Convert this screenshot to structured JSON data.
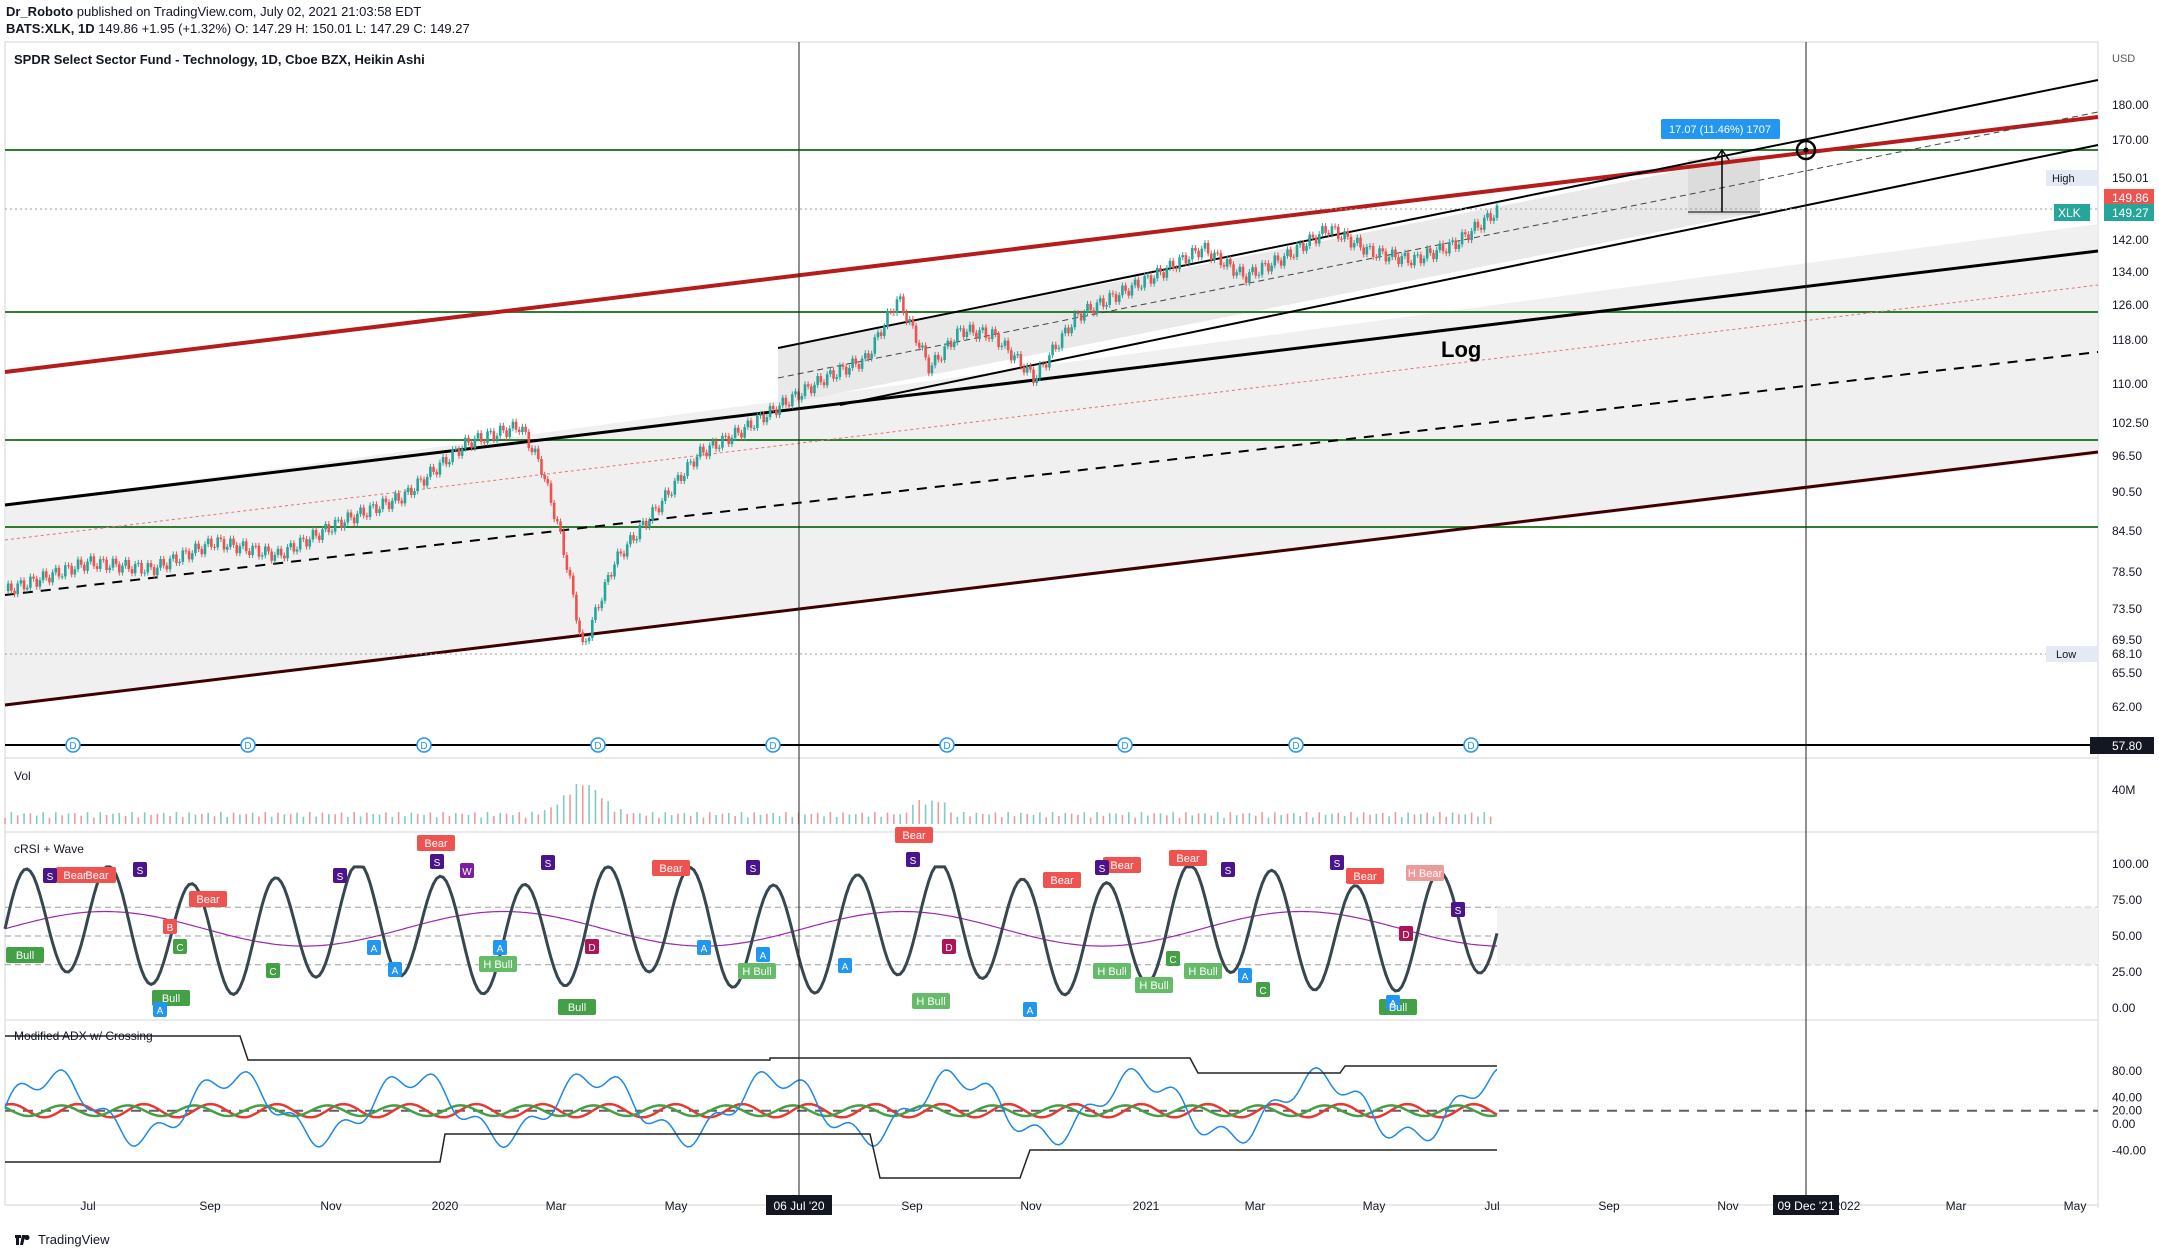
{
  "header": {
    "author": "Dr_Roboto",
    "published": "published on TradingView.com, July 02, 2021 21:03:58 EDT",
    "ticker_line_symbol": "BATS:XLK, 1D",
    "ticker_line_values": "149.86  +1.95 (+1.32%)  O: 147.29  H: 150.01  L: 147.29  C: 149.27"
  },
  "main_title": "SPDR Select Sector Fund - Technology, 1D, Cboe BZX, Heikin Ashi",
  "log_label": "Log",
  "currency": "USD",
  "measure_label": "17.07 (11.46%) 1707",
  "price_axis_ticks": [
    "180.00",
    "170.00",
    "150.01",
    "142.00",
    "134.00",
    "126.00",
    "118.00",
    "110.00",
    "102.50",
    "96.50",
    "90.50",
    "84.50",
    "78.50",
    "73.50",
    "69.50",
    "65.50",
    "62.00",
    "57.80"
  ],
  "price_tags": {
    "high_label": "High",
    "high_value": "150.01",
    "last_value": "149.86",
    "symbol": "XLK",
    "close_value": "149.27",
    "low_label": "Low",
    "low_value": "68.10",
    "cursor_value": "57.80"
  },
  "panes": {
    "volume": {
      "label": "Vol",
      "tick": "40M"
    },
    "crsi": {
      "label": "cRSI + Wave",
      "ticks": [
        "100.00",
        "75.00",
        "50.00",
        "25.00",
        "0.00"
      ]
    },
    "adx": {
      "label": "Modified ADX w/ Crossing",
      "ticks": [
        "80.00",
        "40.00",
        "20.00",
        "0.00",
        "-40.00"
      ]
    }
  },
  "time_axis": [
    "Jul",
    "Sep",
    "Nov",
    "2020",
    "Mar",
    "May",
    "06 Jul '20",
    "Sep",
    "Nov",
    "2021",
    "Mar",
    "May",
    "Jul",
    "Sep",
    "Nov",
    "09 Dec '21",
    "2022",
    "Mar",
    "May"
  ],
  "dividend_marker": "D",
  "signal_labels": {
    "bear": "Bear",
    "bull": "Bull",
    "hbull": "H Bull",
    "hbear": "H Bear",
    "s": "S",
    "w": "W",
    "b": "B",
    "a": "A",
    "c": "C",
    "d": "D"
  },
  "footer": {
    "brand": "TradingView"
  },
  "colors": {
    "up": "#26a69a",
    "down": "#ef5350",
    "channel_red": "#b71c1c",
    "green_line": "#2e7d32",
    "black": "#000000",
    "grid": "#e0e3eb",
    "blue": "#2196f3",
    "purple": "#9c27b0"
  },
  "chart_data": {
    "type": "candlestick",
    "symbol": "BATS:XLK",
    "interval": "1D",
    "chart_style": "Heikin Ashi",
    "scale": "log",
    "last": {
      "open": 147.29,
      "high": 150.01,
      "low": 147.29,
      "close": 149.27,
      "change": 1.95,
      "change_pct": 1.32
    },
    "high_marker": 150.01,
    "low_marker": 68.1,
    "horizontal_levels": [
      165.5,
      126.0,
      99.0,
      85.5
    ],
    "price_path": [
      [
        0,
        76
      ],
      [
        0.04,
        80
      ],
      [
        0.07,
        79
      ],
      [
        0.1,
        83
      ],
      [
        0.13,
        81
      ],
      [
        0.16,
        86
      ],
      [
        0.19,
        90
      ],
      [
        0.22,
        99
      ],
      [
        0.245,
        102
      ],
      [
        0.255,
        95
      ],
      [
        0.265,
        83
      ],
      [
        0.275,
        68.5
      ],
      [
        0.29,
        80
      ],
      [
        0.31,
        88
      ],
      [
        0.33,
        97
      ],
      [
        0.35,
        101
      ],
      [
        0.37,
        106
      ],
      [
        0.39,
        111
      ],
      [
        0.41,
        115
      ],
      [
        0.425,
        128
      ],
      [
        0.44,
        113
      ],
      [
        0.455,
        121
      ],
      [
        0.47,
        120
      ],
      [
        0.49,
        111
      ],
      [
        0.51,
        124
      ],
      [
        0.53,
        129
      ],
      [
        0.55,
        134
      ],
      [
        0.57,
        140
      ],
      [
        0.59,
        133
      ],
      [
        0.61,
        138
      ],
      [
        0.63,
        145
      ],
      [
        0.65,
        139
      ],
      [
        0.67,
        137
      ],
      [
        0.69,
        141
      ],
      [
        0.71,
        149.5
      ]
    ],
    "measure": {
      "label": "17.07 (11.46%) 1707"
    },
    "subpanes": [
      "Vol",
      "cRSI + Wave",
      "Modified ADX w/ Crossing"
    ]
  }
}
